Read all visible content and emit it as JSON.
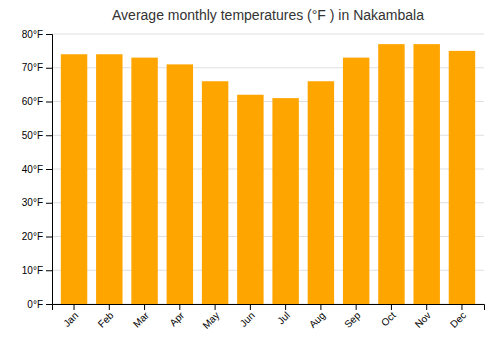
{
  "chart_data": {
    "type": "bar",
    "title": "Average monthly temperatures (°F ) in Nakambala",
    "categories": [
      "Jan",
      "Feb",
      "Mar",
      "Apr",
      "May",
      "Jun",
      "Jul",
      "Aug",
      "Sep",
      "Oct",
      "Nov",
      "Dec"
    ],
    "values": [
      74,
      74,
      73,
      71,
      66,
      62,
      61,
      66,
      73,
      77,
      77,
      75
    ],
    "color": "#FFA500",
    "ylim": [
      0,
      80
    ],
    "yticks": [
      {
        "value": 0,
        "label": "0°F"
      },
      {
        "value": 10,
        "label": "10°F"
      },
      {
        "value": 20,
        "label": "20°F"
      },
      {
        "value": 30,
        "label": "30°F"
      },
      {
        "value": 40,
        "label": "40°F"
      },
      {
        "value": 50,
        "label": "50°F"
      },
      {
        "value": 60,
        "label": "60°F"
      },
      {
        "value": 70,
        "label": "70°F"
      },
      {
        "value": 80,
        "label": "80°F"
      }
    ],
    "grid": true
  }
}
